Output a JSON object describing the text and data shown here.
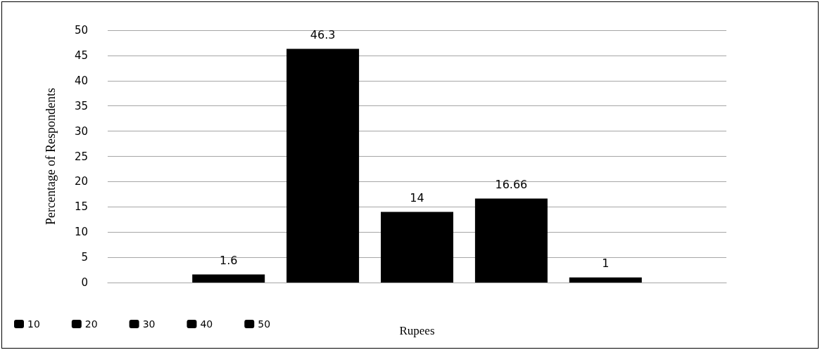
{
  "chart_data": {
    "type": "bar",
    "ylabel": "Percentage of Respondents",
    "xlabel": "Rupees",
    "categories": [
      null
    ],
    "series": [
      {
        "name": "10",
        "color": "#000000",
        "values": [
          1.6
        ]
      },
      {
        "name": "20",
        "color": "#000000",
        "values": [
          46.3
        ]
      },
      {
        "name": "30",
        "color": "#000000",
        "values": [
          14
        ]
      },
      {
        "name": "40",
        "color": "#000000",
        "values": [
          16.66
        ]
      },
      {
        "name": "50",
        "color": "#000000",
        "values": [
          1
        ]
      }
    ],
    "ylim": [
      0,
      50
    ],
    "yticks": [
      0,
      5,
      10,
      15,
      20,
      25,
      30,
      35,
      40,
      45,
      50
    ],
    "grid": "y",
    "legend": "bottom left",
    "data_labels": true
  }
}
